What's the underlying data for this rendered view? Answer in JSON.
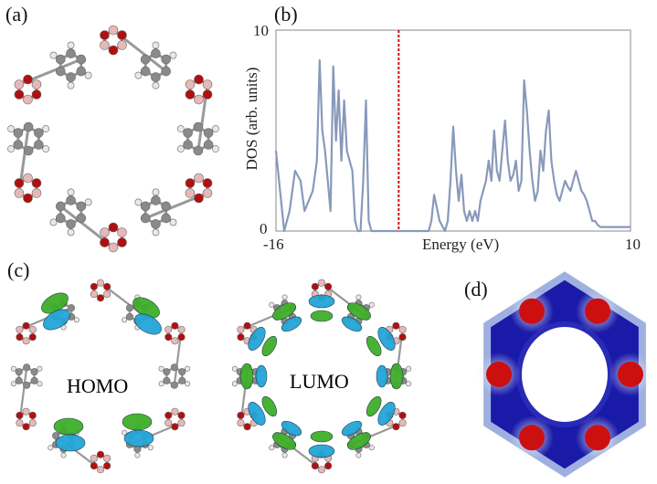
{
  "panels": {
    "a": {
      "label": "(a)"
    },
    "b": {
      "label": "(b)"
    },
    "c": {
      "label": "(c)",
      "homo_label": "HOMO",
      "lumo_label": "LUMO"
    },
    "d": {
      "label": "(d)"
    }
  },
  "colors": {
    "carbon": "#8a8a8a",
    "hydrogen": "#e8e8e8",
    "boron": "#e8b8b8",
    "oxygen": "#b01010",
    "orbital_green": "#3fae2a",
    "orbital_blue": "#22a6d8",
    "dos_line": "#8899bb",
    "fermi_line": "#cc1111",
    "esp_blue": "#1a1aa8",
    "esp_red": "#cc1010"
  },
  "chart_data": {
    "type": "line",
    "title": "",
    "xlabel": "Energy (eV)",
    "ylabel": "DOS (arb. units)",
    "xlim": [
      -16,
      10
    ],
    "ylim": [
      0,
      10
    ],
    "x_tick_labels": [
      "-16",
      "10"
    ],
    "y_tick_labels": [
      "0",
      "10"
    ],
    "fermi_level": -7.0,
    "grid": false,
    "series": [
      {
        "x": [
          -16.0,
          -15.7,
          -15.4,
          -15.0,
          -14.6,
          -14.2,
          -13.9,
          -13.6,
          -13.3,
          -13.0,
          -12.8,
          -12.6,
          -12.4,
          -12.2,
          -12.0,
          -11.8,
          -11.6,
          -11.4,
          -11.2,
          -11.0,
          -10.8,
          -10.6,
          -10.4,
          -10.2,
          -10.0,
          -9.8,
          -9.6,
          -9.4,
          -9.2,
          -9.0,
          -8.8,
          -8.6,
          -8.4,
          -8.2,
          -8.0,
          -7.8,
          -7.5,
          -7.0,
          -6.5,
          -5.8,
          -5.4,
          -5.2,
          -5.0,
          -4.8,
          -4.6,
          -4.4,
          -4.0,
          -3.6,
          -3.4,
          -3.2,
          -3.0,
          -2.8,
          -2.6,
          -2.4,
          -2.2,
          -2.0,
          -1.8,
          -1.6,
          -1.4,
          -1.2,
          -1.0,
          -0.8,
          -0.6,
          -0.4,
          -0.2,
          0.0,
          0.2,
          0.4,
          0.6,
          0.8,
          1.0,
          1.2,
          1.4,
          1.6,
          1.8,
          2.0,
          2.2,
          2.4,
          2.6,
          2.8,
          3.0,
          3.2,
          3.4,
          3.6,
          3.8,
          4.0,
          4.2,
          4.4,
          4.6,
          4.8,
          5.0,
          5.2,
          5.4,
          5.6,
          5.8,
          6.0,
          6.2,
          6.4,
          6.6,
          6.8,
          7.0,
          7.2,
          7.4,
          7.6,
          7.8,
          8.0,
          8.2,
          8.4,
          8.6,
          8.8,
          9.0,
          9.2,
          9.4,
          9.6,
          9.8,
          10.0
        ],
        "values": [
          4.0,
          2.0,
          0.0,
          1.0,
          3.0,
          2.5,
          1.0,
          1.5,
          2.0,
          3.5,
          8.5,
          5.0,
          4.0,
          2.5,
          1.0,
          8.2,
          4.5,
          7.0,
          3.5,
          6.5,
          4.0,
          3.5,
          3.0,
          0.5,
          0.0,
          0.0,
          2.5,
          6.5,
          0.5,
          0.0,
          0.0,
          0.0,
          0.0,
          0.0,
          0.0,
          0.0,
          0.0,
          0.0,
          0.0,
          0.0,
          0.0,
          0.0,
          0.0,
          0.0,
          0.5,
          1.8,
          0.5,
          0.0,
          0.5,
          2.5,
          5.2,
          3.0,
          1.5,
          2.8,
          1.0,
          0.5,
          1.0,
          0.5,
          1.0,
          0.5,
          1.5,
          2.0,
          2.5,
          3.5,
          2.5,
          5.0,
          3.0,
          2.5,
          4.0,
          5.5,
          3.5,
          2.5,
          2.8,
          3.5,
          2.0,
          2.5,
          7.5,
          6.0,
          4.0,
          2.5,
          1.5,
          2.0,
          4.0,
          3.0,
          5.0,
          6.0,
          3.5,
          2.5,
          1.8,
          1.5,
          2.0,
          2.5,
          2.2,
          2.0,
          2.5,
          3.0,
          2.5,
          2.0,
          1.8,
          1.5,
          1.0,
          0.5,
          0.5,
          0.3,
          0.2,
          0.2,
          0.2,
          0.2,
          0.2,
          0.2,
          0.2,
          0.2,
          0.2,
          0.2,
          0.2,
          0.2
        ]
      }
    ]
  }
}
